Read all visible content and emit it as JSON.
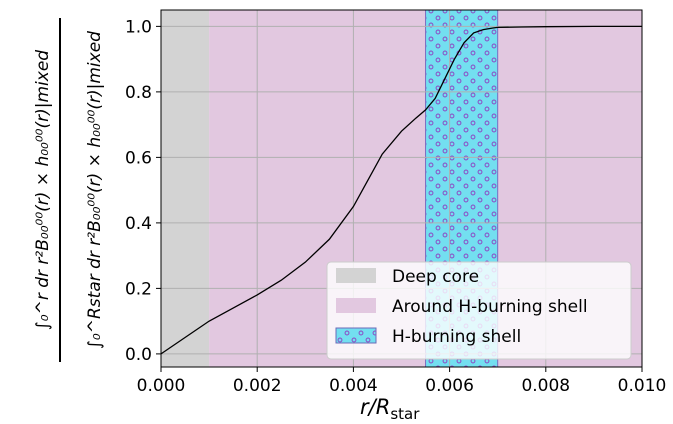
{
  "chart_data": {
    "type": "line",
    "xlabel_main": "r/R",
    "xlabel_sub": "star",
    "ylabel_top": "∫₀^r dr r²B₀₀⁰⁰(r) × h₀₀⁰⁰(r)|mixed",
    "ylabel_bottom": "∫₀^Rstar dr r²B₀₀⁰⁰(r) × h₀₀⁰⁰(r)|mixed",
    "xlim": [
      0.0,
      0.01
    ],
    "ylim": [
      -0.04,
      1.05
    ],
    "grid": true,
    "x_ticks": [
      "0.000",
      "0.002",
      "0.004",
      "0.006",
      "0.008",
      "0.010"
    ],
    "x_tick_values": [
      0.0,
      0.002,
      0.004,
      0.006,
      0.008,
      0.01
    ],
    "y_ticks": [
      "0.0",
      "0.2",
      "0.4",
      "0.6",
      "0.8",
      "1.0"
    ],
    "y_tick_values": [
      0.0,
      0.2,
      0.4,
      0.6,
      0.8,
      1.0
    ],
    "regions": [
      {
        "name": "Deep core",
        "x0": 0.0,
        "x1": 0.001,
        "color": "#d3d3d3",
        "hatch": false
      },
      {
        "name": "Around H-burning shell",
        "x0": 0.001,
        "x1": 0.01,
        "color": "#e2c8e0",
        "hatch": false
      },
      {
        "name": "H-burning shell",
        "x0": 0.0055,
        "x1": 0.007,
        "color": "#73dff0",
        "hatch": true
      }
    ],
    "legend": {
      "position": "lower right",
      "entries": [
        "Deep core",
        "Around H-burning shell",
        "H-burning shell"
      ]
    },
    "series": [
      {
        "x": [
          0.0,
          0.0005,
          0.001,
          0.0015,
          0.002,
          0.0025,
          0.003,
          0.0035,
          0.004,
          0.0043,
          0.0046,
          0.005,
          0.0053,
          0.0055,
          0.0057,
          0.0059,
          0.0061,
          0.0063,
          0.0065,
          0.0067,
          0.0069,
          0.007,
          0.0075,
          0.008,
          0.009,
          0.01
        ],
        "y": [
          0.0,
          0.05,
          0.1,
          0.14,
          0.18,
          0.225,
          0.28,
          0.35,
          0.45,
          0.53,
          0.61,
          0.68,
          0.72,
          0.745,
          0.78,
          0.84,
          0.9,
          0.95,
          0.98,
          0.99,
          0.995,
          0.997,
          0.998,
          0.999,
          1.0,
          1.0
        ],
        "color": "#000000"
      }
    ]
  }
}
